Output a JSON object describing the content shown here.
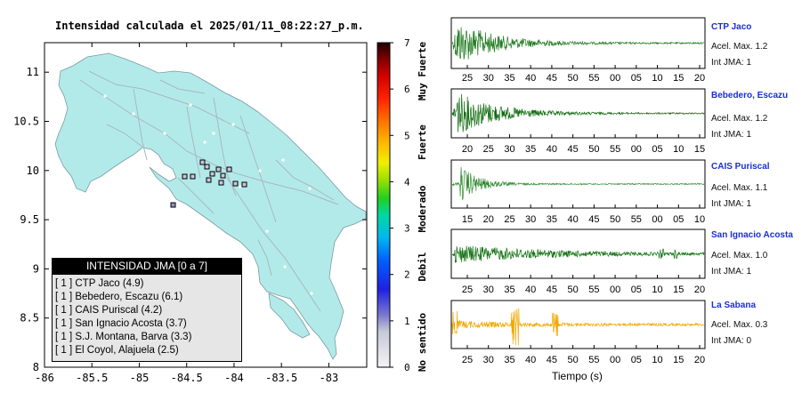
{
  "map": {
    "title": "Intensidad calculada el 2025/01/11_08:22:27_p.m.",
    "x_ticks": [
      "-86",
      "-85.5",
      "-85",
      "-84.5",
      "-84",
      "-83.5",
      "-83"
    ],
    "y_ticks": [
      "11",
      "10.5",
      "10",
      "9.5",
      "9",
      "8.5",
      "8"
    ],
    "colors": {
      "land": "#b2eaea",
      "sea": "#ffffff",
      "roads": "#a8b8c0"
    }
  },
  "colorbar": {
    "ticks": [
      "0",
      "1",
      "2",
      "3",
      "4",
      "5",
      "6",
      "7"
    ],
    "labels": [
      "No sentido",
      "Debil",
      "Moderado",
      "Fuerte",
      "Muy Fuerte"
    ],
    "range": [
      0,
      7
    ]
  },
  "legend": {
    "header": "INTENSIDAD JMA [0 a 7]",
    "rows": [
      "[ 1 ]  CTP Jaco (4.9)",
      "[ 1 ]  Bebedero, Escazu (6.1)",
      "[ 1 ]  CAIS Puriscal (4.2)",
      "[ 1 ]  San Ignacio Acosta (3.7)",
      "[ 1 ]  S.J. Montana, Barva (3.3)",
      "[ 1 ]  El Coyol, Alajuela (2.5)"
    ]
  },
  "traces": {
    "xlabel": "Tiempo (s)",
    "panels": [
      {
        "station": "CTP Jaco",
        "acel": "Acel. Max. 1.2",
        "int": "Int JMA: 1",
        "color": "#1e7a1e",
        "ticks": [
          "25",
          "30",
          "35",
          "40",
          "45",
          "50",
          "55",
          "00",
          "05",
          "10",
          "15",
          "20"
        ]
      },
      {
        "station": "Bebedero, Escazu",
        "acel": "Acel. Max. 1.2",
        "int": "Int JMA: 1",
        "color": "#0f6a0f",
        "ticks": [
          "20",
          "25",
          "30",
          "35",
          "40",
          "45",
          "50",
          "55",
          "00",
          "05",
          "10",
          "15"
        ]
      },
      {
        "station": "CAIS Puriscal",
        "acel": "Acel. Max. 1.1",
        "int": "Int JMA: 1",
        "color": "#2f8a2f",
        "ticks": [
          "15",
          "20",
          "25",
          "30",
          "35",
          "40",
          "45",
          "50",
          "55",
          "00",
          "05",
          "10"
        ]
      },
      {
        "station": "San Ignacio Acosta",
        "acel": "Acel. Max. 1.0",
        "int": "Int JMA: 1",
        "color": "#137213",
        "ticks": [
          "25",
          "30",
          "35",
          "40",
          "45",
          "50",
          "55",
          "00",
          "05",
          "10",
          "15",
          "20"
        ]
      },
      {
        "station": "La Sabana",
        "acel": "Acel. Max. 0.3",
        "int": "Int JMA: 0",
        "color": "#f0a800",
        "ticks": [
          "25",
          "30",
          "35",
          "40",
          "45",
          "50",
          "55",
          "00",
          "05",
          "10",
          "15",
          "20"
        ]
      }
    ]
  },
  "chart_data": {
    "type": "scatter",
    "title": "Intensidad calculada el 2025/01/11_08:22:27_p.m.",
    "xlabel": "",
    "ylabel": "",
    "xlim": [
      -86,
      -82.6
    ],
    "ylim": [
      8,
      11.3
    ],
    "series": [
      {
        "name": "INTENSIDAD JMA [0 a 7]",
        "values": [
          {
            "station": "CTP Jaco",
            "jma": 1,
            "value": 4.9
          },
          {
            "station": "Bebedero, Escazu",
            "jma": 1,
            "value": 6.1
          },
          {
            "station": "CAIS Puriscal",
            "jma": 1,
            "value": 4.2
          },
          {
            "station": "San Ignacio Acosta",
            "jma": 1,
            "value": 3.7
          },
          {
            "station": "S.J. Montana, Barva",
            "jma": 1,
            "value": 3.3
          },
          {
            "station": "El Coyol, Alajuela",
            "jma": 1,
            "value": 2.5
          }
        ]
      }
    ]
  }
}
